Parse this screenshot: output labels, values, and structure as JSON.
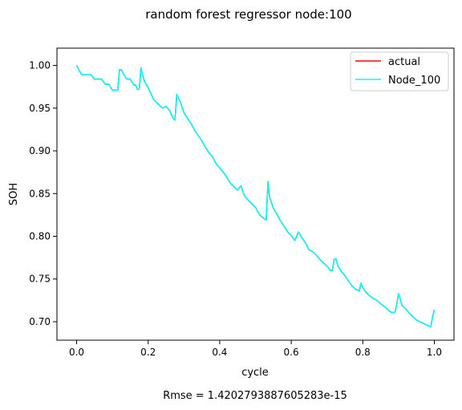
{
  "chart_data": {
    "type": "line",
    "title": "random forest regressor node:100",
    "xlabel": "cycle",
    "ylabel": "SOH",
    "xlim": [
      -0.055,
      1.055
    ],
    "ylim": [
      0.6784,
      1.0202
    ],
    "xticks": [
      0.0,
      0.2,
      0.4,
      0.6,
      0.8,
      1.0
    ],
    "xtick_labels": [
      "0.0",
      "0.2",
      "0.4",
      "0.6",
      "0.8",
      "1.0"
    ],
    "yticks": [
      0.7,
      0.75,
      0.8,
      0.85,
      0.9,
      0.95,
      1.0
    ],
    "ytick_labels": [
      "0.70",
      "0.75",
      "0.80",
      "0.85",
      "0.90",
      "0.95",
      "1.00"
    ],
    "grid": false,
    "legend_position": "top-right",
    "footer": "Rmse = 1.4202793887605283e-15",
    "x": [
      0.0,
      0.005,
      0.01,
      0.015,
      0.02,
      0.03,
      0.04,
      0.05,
      0.06,
      0.07,
      0.08,
      0.09,
      0.1,
      0.105,
      0.11,
      0.115,
      0.12,
      0.125,
      0.13,
      0.14,
      0.15,
      0.16,
      0.165,
      0.17,
      0.175,
      0.18,
      0.185,
      0.19,
      0.2,
      0.21,
      0.215,
      0.22,
      0.23,
      0.24,
      0.25,
      0.26,
      0.27,
      0.275,
      0.28,
      0.29,
      0.3,
      0.31,
      0.32,
      0.33,
      0.34,
      0.35,
      0.36,
      0.37,
      0.38,
      0.39,
      0.4,
      0.41,
      0.42,
      0.43,
      0.44,
      0.45,
      0.455,
      0.46,
      0.465,
      0.47,
      0.48,
      0.49,
      0.5,
      0.51,
      0.52,
      0.53,
      0.535,
      0.54,
      0.55,
      0.56,
      0.57,
      0.58,
      0.59,
      0.6,
      0.61,
      0.615,
      0.62,
      0.63,
      0.64,
      0.65,
      0.66,
      0.67,
      0.68,
      0.69,
      0.7,
      0.71,
      0.715,
      0.72,
      0.725,
      0.73,
      0.74,
      0.75,
      0.76,
      0.77,
      0.78,
      0.79,
      0.795,
      0.8,
      0.81,
      0.82,
      0.83,
      0.84,
      0.85,
      0.86,
      0.87,
      0.88,
      0.89,
      0.895,
      0.9,
      0.91,
      0.92,
      0.93,
      0.94,
      0.95,
      0.96,
      0.97,
      0.98,
      0.99,
      0.995,
      1.0
    ],
    "series": [
      {
        "name": "actual",
        "color": "#ff0000",
        "values": [
          1.0,
          0.996,
          0.992,
          0.989,
          0.989,
          0.989,
          0.989,
          0.984,
          0.984,
          0.984,
          0.978,
          0.978,
          0.971,
          0.971,
          0.971,
          0.971,
          0.995,
          0.995,
          0.991,
          0.984,
          0.984,
          0.977,
          0.977,
          0.972,
          0.972,
          0.997,
          0.988,
          0.981,
          0.974,
          0.965,
          0.96,
          0.958,
          0.954,
          0.95,
          0.952,
          0.947,
          0.938,
          0.936,
          0.966,
          0.957,
          0.945,
          0.938,
          0.932,
          0.924,
          0.918,
          0.912,
          0.904,
          0.898,
          0.893,
          0.885,
          0.88,
          0.875,
          0.869,
          0.862,
          0.858,
          0.854,
          0.857,
          0.859,
          0.852,
          0.847,
          0.842,
          0.838,
          0.834,
          0.826,
          0.822,
          0.819,
          0.864,
          0.845,
          0.833,
          0.826,
          0.818,
          0.812,
          0.805,
          0.801,
          0.795,
          0.8,
          0.805,
          0.798,
          0.792,
          0.784,
          0.782,
          0.778,
          0.773,
          0.769,
          0.765,
          0.76,
          0.76,
          0.773,
          0.774,
          0.766,
          0.759,
          0.754,
          0.748,
          0.742,
          0.738,
          0.736,
          0.745,
          0.74,
          0.734,
          0.73,
          0.727,
          0.725,
          0.721,
          0.718,
          0.714,
          0.711,
          0.711,
          0.72,
          0.733,
          0.719,
          0.715,
          0.71,
          0.706,
          0.702,
          0.7,
          0.698,
          0.696,
          0.694,
          0.705,
          0.714
        ]
      },
      {
        "name": "Node_100",
        "color": "#00ffff",
        "values": [
          1.0,
          0.996,
          0.992,
          0.989,
          0.989,
          0.989,
          0.989,
          0.984,
          0.984,
          0.984,
          0.978,
          0.978,
          0.971,
          0.971,
          0.971,
          0.971,
          0.995,
          0.995,
          0.991,
          0.984,
          0.984,
          0.977,
          0.977,
          0.972,
          0.972,
          0.997,
          0.988,
          0.981,
          0.974,
          0.965,
          0.96,
          0.958,
          0.954,
          0.95,
          0.952,
          0.947,
          0.938,
          0.936,
          0.966,
          0.957,
          0.945,
          0.938,
          0.932,
          0.924,
          0.918,
          0.912,
          0.904,
          0.898,
          0.893,
          0.885,
          0.88,
          0.875,
          0.869,
          0.862,
          0.858,
          0.854,
          0.857,
          0.859,
          0.852,
          0.847,
          0.842,
          0.838,
          0.834,
          0.826,
          0.822,
          0.819,
          0.864,
          0.845,
          0.833,
          0.826,
          0.818,
          0.812,
          0.805,
          0.801,
          0.795,
          0.8,
          0.805,
          0.798,
          0.792,
          0.784,
          0.782,
          0.778,
          0.773,
          0.769,
          0.765,
          0.76,
          0.76,
          0.773,
          0.774,
          0.766,
          0.759,
          0.754,
          0.748,
          0.742,
          0.738,
          0.736,
          0.745,
          0.74,
          0.734,
          0.73,
          0.727,
          0.725,
          0.721,
          0.718,
          0.714,
          0.711,
          0.711,
          0.72,
          0.733,
          0.719,
          0.715,
          0.71,
          0.706,
          0.702,
          0.7,
          0.698,
          0.696,
          0.694,
          0.705,
          0.714
        ]
      }
    ]
  }
}
